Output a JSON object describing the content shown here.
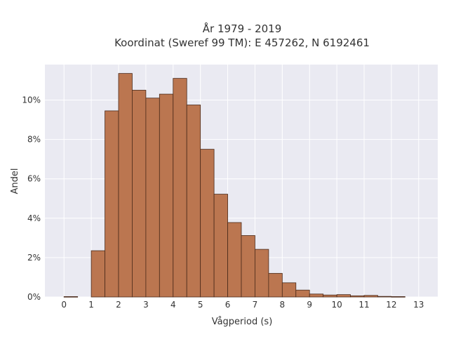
{
  "chart_data": {
    "type": "bar",
    "title_lines": [
      "År 1979 - 2019",
      "Koordinat (Sweref 99 TM): E 457262, N 6192461"
    ],
    "xlabel": "Vågperiod (s)",
    "ylabel": "Andel",
    "x_ticks": [
      "0",
      "1",
      "2",
      "3",
      "4",
      "5",
      "6",
      "7",
      "8",
      "9",
      "10",
      "11",
      "12",
      "13"
    ],
    "y_ticks": [
      "0%",
      "2%",
      "4%",
      "6%",
      "8%",
      "10%"
    ],
    "y_tick_values": [
      0,
      2,
      4,
      6,
      8,
      10
    ],
    "xlim": [
      -0.7,
      13.7
    ],
    "ylim": [
      0,
      11.8
    ],
    "bin_width": 0.5,
    "bins_start": [
      0,
      0.5,
      1,
      1.5,
      2,
      2.5,
      3,
      3.5,
      4,
      4.5,
      5,
      5.5,
      6,
      6.5,
      7,
      7.5,
      8,
      8.5,
      9,
      9.5,
      10,
      10.5,
      11,
      11.5,
      12,
      12.5
    ],
    "values": [
      0.02,
      0,
      2.35,
      9.45,
      11.35,
      10.5,
      10.1,
      10.3,
      11.1,
      9.75,
      7.5,
      5.22,
      3.78,
      3.12,
      2.42,
      1.2,
      0.72,
      0.35,
      0.15,
      0.1,
      0.12,
      0.06,
      0.08,
      0.03,
      0.02,
      0
    ],
    "bar_color": "#bb7650",
    "bar_edge_color": "#4a2a1a",
    "plot_bg": "#eaeaf2",
    "grid": true,
    "grid_color": "#ffffff"
  }
}
